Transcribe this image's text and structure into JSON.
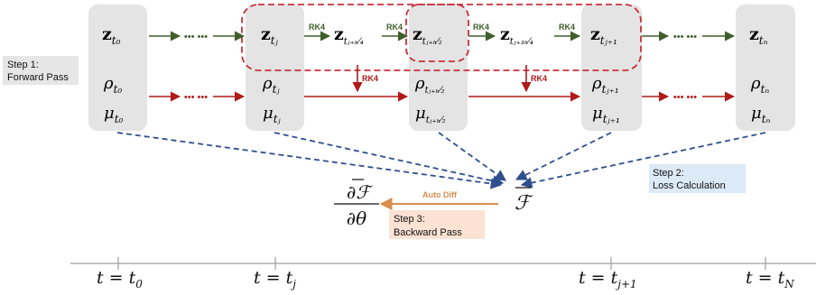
{
  "colors": {
    "green": "#3f5e2b",
    "red": "#b01a1a",
    "blue": "#2f4f8f",
    "orange": "#d98e4e",
    "box_gray": "#e4e4e4",
    "step_gray": "#e6e6e6",
    "step_blue": "#dce9f7",
    "step_orange": "#fbe2d2"
  },
  "steps": {
    "forward": {
      "line1": "Step 1:",
      "line2": "Forward Pass"
    },
    "loss": {
      "line1": "Step 2:",
      "line2": "Loss Calculation"
    },
    "backward": {
      "line1": "Step 3:",
      "line2": "Backward Pass"
    }
  },
  "arrow_labels": {
    "rk4": "RK4",
    "auto_diff": "Auto Diff"
  },
  "ellipsis": "••• •••",
  "columns": {
    "t0": {
      "z_sub": "t₀",
      "rho_sub": "t₀",
      "mu_sub": "t₀"
    },
    "tj": {
      "z_sub": "tⱼ",
      "rho_sub": "tⱼ",
      "mu_sub": "tⱼ"
    },
    "tjh4": {
      "z_sub": "tⱼ₊ₕ⁄₄"
    },
    "tjh2": {
      "z_sub": "tⱼ₊ₕ⁄₂",
      "rho_sub": "tⱼ₊ₕ⁄₂",
      "mu_sub": "tⱼ₊ₕ⁄₂"
    },
    "tj3h4": {
      "z_sub": "tⱼ₊₃ₕ⁄₄"
    },
    "tj1": {
      "z_sub": "tⱼ₊₁",
      "rho_sub": "tⱼ₊₁",
      "mu_sub": "tⱼ₊₁"
    },
    "tN": {
      "z_sub": "tₙ",
      "rho_sub": "tₙ",
      "mu_sub": "tₙ"
    }
  },
  "symbols": {
    "z": "z",
    "rho": "ρ",
    "mu": "μ"
  },
  "loss": {
    "symbol": "ℱ"
  },
  "gradient": {
    "numerator": "∂ℱ",
    "denominator": "∂θ"
  },
  "timeline": {
    "t0": {
      "lhs": "t = t",
      "sub": "0"
    },
    "tj": {
      "lhs": "t = t",
      "sub": "j"
    },
    "tj1": {
      "lhs": "t = t",
      "sub": "j+1"
    },
    "tN": {
      "lhs": "t = t",
      "sub": "N"
    }
  }
}
